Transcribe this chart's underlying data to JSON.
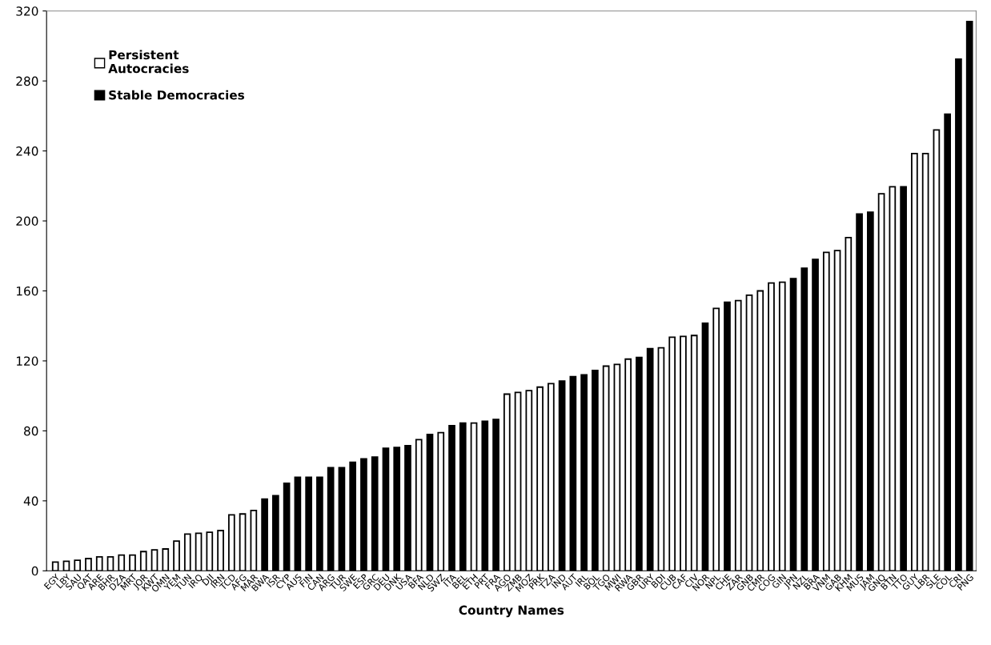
{
  "chart_data": {
    "type": "bar",
    "xlabel": "Country Names",
    "categories": [
      "EGY",
      "LBY",
      "SAU",
      "QAT",
      "ARE",
      "BHR",
      "DZA",
      "MRT",
      "JOR",
      "KWT",
      "OMN",
      "YEM",
      "TUN",
      "IRQ",
      "DJI",
      "IRN",
      "TCD",
      "AFG",
      "MAR",
      "BWA",
      "ISR",
      "CYP",
      "AUS",
      "FIN",
      "CAN",
      "ARG",
      "TUR",
      "SWE",
      "ESP",
      "GRC",
      "DEU",
      "DNK",
      "USA",
      "BFA",
      "NLD",
      "SWZ",
      "ITA",
      "BEL",
      "ETH",
      "PRT",
      "FRA",
      "AGO",
      "ZMB",
      "MOZ",
      "PRK",
      "TZA",
      "IND",
      "AUT",
      "IRL",
      "BOL",
      "TGO",
      "MWI",
      "RWA",
      "GBR",
      "URY",
      "BDI",
      "CUB",
      "CAF",
      "CIV",
      "NOR",
      "NPL",
      "CHE",
      "ZAR",
      "GNB",
      "CMR",
      "COG",
      "GIN",
      "JPN",
      "NZL",
      "BRA",
      "VNM",
      "GAB",
      "KHM",
      "MUS",
      "JAM",
      "GNQ",
      "BTN",
      "TTO",
      "GUY",
      "LBR",
      "SLE",
      "COL",
      "CRI",
      "PNG"
    ],
    "series": [
      {
        "name": "Persistent\nAutocracies",
        "color": "#ffffff",
        "values": [
          5,
          5.5,
          6,
          7,
          8,
          8,
          9,
          9,
          11,
          12,
          12.5,
          17,
          21,
          21.5,
          22,
          23,
          32,
          32.5,
          34.5,
          null,
          null,
          null,
          null,
          null,
          null,
          null,
          null,
          null,
          null,
          null,
          null,
          null,
          null,
          75,
          null,
          79,
          null,
          null,
          84.5,
          null,
          null,
          101,
          102,
          103,
          105,
          107,
          null,
          null,
          null,
          null,
          117,
          118,
          121,
          null,
          null,
          127.5,
          133.5,
          134,
          134.5,
          null,
          150,
          null,
          154.5,
          157.5,
          160,
          164.5,
          165,
          null,
          null,
          null,
          182,
          183,
          190.5,
          null,
          null,
          215.5,
          219.5,
          null,
          238.5,
          238.5,
          252,
          null,
          null,
          null
        ]
      },
      {
        "name": "Stable Democracies",
        "color": "#000000",
        "values": [
          null,
          null,
          null,
          null,
          null,
          null,
          null,
          null,
          null,
          null,
          null,
          null,
          null,
          null,
          null,
          null,
          null,
          null,
          null,
          41,
          43,
          50,
          53.5,
          53.5,
          53.5,
          59,
          59,
          62,
          64,
          65,
          70,
          70.5,
          71.5,
          null,
          78,
          null,
          83,
          84.5,
          null,
          85.5,
          86.5,
          null,
          null,
          null,
          null,
          null,
          108.5,
          111,
          112,
          114.5,
          null,
          null,
          null,
          122,
          127,
          null,
          null,
          null,
          null,
          141.5,
          null,
          153.5,
          null,
          null,
          null,
          null,
          null,
          167,
          173,
          178,
          null,
          null,
          null,
          204,
          205,
          null,
          null,
          219.5,
          null,
          null,
          null,
          261,
          292.5,
          314
        ]
      }
    ],
    "ylim": [
      0,
      320
    ],
    "yticks": [
      0,
      40,
      80,
      120,
      160,
      200,
      240,
      280,
      320
    ],
    "grid": false,
    "legend": "top left"
  }
}
